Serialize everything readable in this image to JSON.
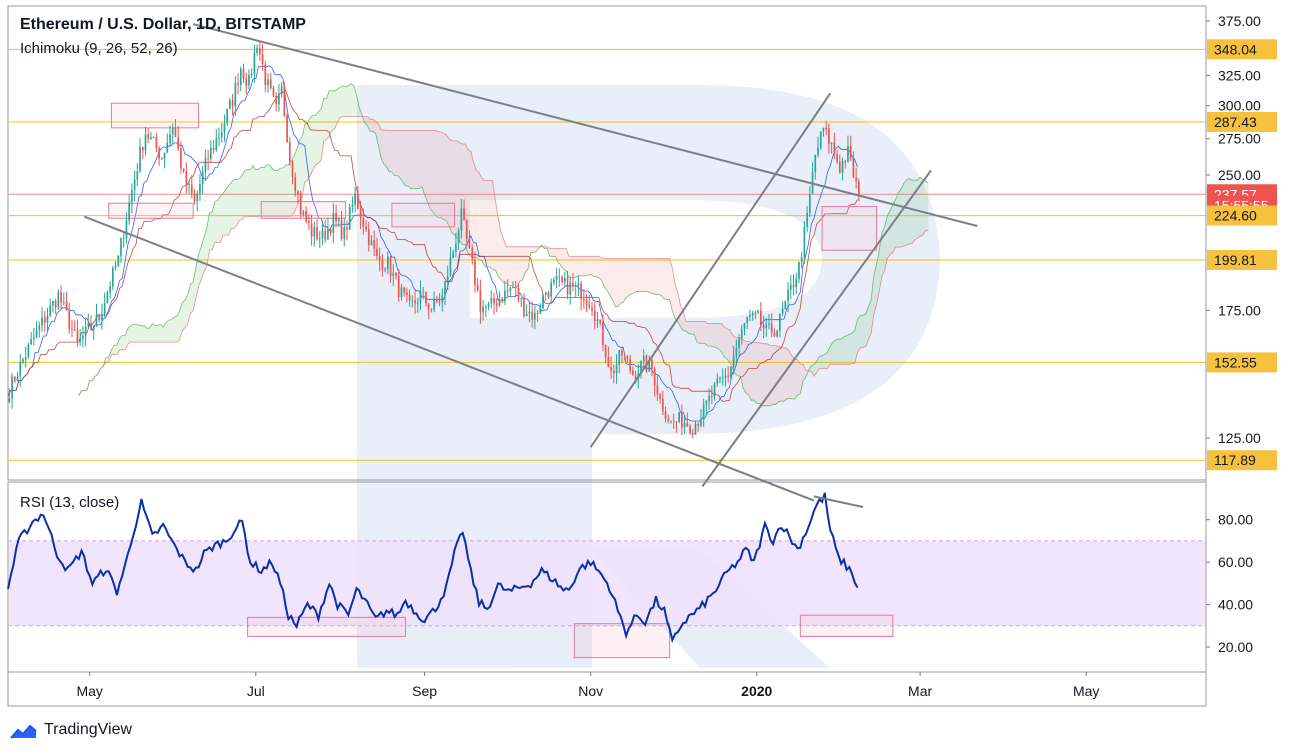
{
  "header": {
    "title": "Ethereum / U.S. Dollar, 1D, BITSTAMP",
    "indicator": "Ichimoku (9, 26, 52, 26)"
  },
  "rsi_panel": {
    "label": "RSI (13, close)"
  },
  "branding": {
    "text": "TradingView"
  },
  "colors": {
    "up": "#26a69a",
    "down": "#ef5350",
    "tenkan": "#2962ff",
    "kijun": "#b71c1c",
    "cloud_up": "#4caf50",
    "cloud_down": "#e57373",
    "rsi": "#0d2ea8",
    "rsi_band": "#ede0fb",
    "level_line": "#f0c419",
    "level_badge": "#f6c23e",
    "price_badge": "#ef5350",
    "trend_line": "#7b7f8a",
    "watermark": "#2a5ab7"
  },
  "chart_data": {
    "type": "candlestick",
    "symbol": "Ethereum / U.S. Dollar",
    "timeframe": "1D",
    "exchange": "BITSTAMP",
    "indicators": [
      "Ichimoku (9, 26, 52, 26)",
      "RSI (13, close)"
    ],
    "x_axis": {
      "labels": [
        "May",
        "Jul",
        "Sep",
        "Nov",
        "2020",
        "Mar",
        "May"
      ],
      "bold_labels": [
        "2020"
      ],
      "label_days": [
        30,
        91,
        153,
        214,
        275,
        335,
        396
      ],
      "start_day": 0,
      "end_day": 440,
      "start_date": "2019-04-01",
      "note": "day index counted from 2019-04-01"
    },
    "price_axis": {
      "ticks": [
        125,
        150,
        175,
        200,
        225,
        250,
        275,
        300,
        325,
        350,
        375
      ],
      "tick_labels": [
        "125.00",
        "",
        "175.00",
        "",
        "",
        "250.00",
        "275.00",
        "300.00",
        "325.00",
        "",
        "375.00"
      ],
      "scale": "log"
    },
    "level_lines": [
      {
        "value": 348.04,
        "label": "348.04",
        "type": "level"
      },
      {
        "value": 287.43,
        "label": "287.43",
        "type": "level"
      },
      {
        "value": 237.57,
        "label": "237.57",
        "type": "last_price"
      },
      {
        "value": 230.5,
        "label": "15:55:55",
        "type": "countdown"
      },
      {
        "value": 224.6,
        "label": "224.60",
        "type": "level"
      },
      {
        "value": 199.81,
        "label": "199.81",
        "type": "level"
      },
      {
        "value": 152.55,
        "label": "152.55",
        "type": "level"
      },
      {
        "value": 117.89,
        "label": "117.89",
        "type": "level"
      }
    ],
    "price_anchors": [
      [
        0,
        142
      ],
      [
        10,
        165
      ],
      [
        18,
        182
      ],
      [
        25,
        160
      ],
      [
        33,
        172
      ],
      [
        40,
        200
      ],
      [
        45,
        240
      ],
      [
        50,
        280
      ],
      [
        56,
        262
      ],
      [
        60,
        285
      ],
      [
        64,
        248
      ],
      [
        68,
        232
      ],
      [
        73,
        262
      ],
      [
        78,
        282
      ],
      [
        82,
        305
      ],
      [
        85,
        332
      ],
      [
        88,
        318
      ],
      [
        91,
        355
      ],
      [
        94,
        322
      ],
      [
        98,
        296
      ],
      [
        100,
        312
      ],
      [
        103,
        262
      ],
      [
        107,
        228
      ],
      [
        111,
        215
      ],
      [
        115,
        212
      ],
      [
        119,
        222
      ],
      [
        123,
        214
      ],
      [
        127,
        236
      ],
      [
        131,
        216
      ],
      [
        135,
        200
      ],
      [
        139,
        198
      ],
      [
        143,
        185
      ],
      [
        147,
        176
      ],
      [
        151,
        182
      ],
      [
        155,
        176
      ],
      [
        159,
        181
      ],
      [
        163,
        205
      ],
      [
        166,
        224
      ],
      [
        170,
        196
      ],
      [
        173,
        177
      ],
      [
        176,
        176
      ],
      [
        181,
        182
      ],
      [
        185,
        186
      ],
      [
        189,
        176
      ],
      [
        193,
        172
      ],
      [
        197,
        184
      ],
      [
        201,
        188
      ],
      [
        206,
        186
      ],
      [
        210,
        184
      ],
      [
        214,
        178
      ],
      [
        218,
        162
      ],
      [
        221,
        148
      ],
      [
        225,
        156
      ],
      [
        229,
        148
      ],
      [
        233,
        152
      ],
      [
        236,
        150
      ],
      [
        239,
        138
      ],
      [
        243,
        130
      ],
      [
        247,
        131
      ],
      [
        251,
        129
      ],
      [
        255,
        134
      ],
      [
        259,
        142
      ],
      [
        264,
        148
      ],
      [
        268,
        162
      ],
      [
        271,
        171
      ],
      [
        275,
        171
      ],
      [
        278,
        165
      ],
      [
        282,
        167
      ],
      [
        286,
        181
      ],
      [
        290,
        196
      ],
      [
        293,
        223
      ],
      [
        296,
        263
      ],
      [
        299,
        282
      ],
      [
        302,
        270
      ],
      [
        305,
        255
      ],
      [
        308,
        265
      ],
      [
        310,
        250
      ],
      [
        312,
        237.57
      ]
    ],
    "rsi_axis": {
      "ticks": [
        20,
        40,
        60,
        80
      ],
      "tick_labels": [
        "20.00",
        "40.00",
        "60.00",
        "80.00"
      ],
      "range": [
        12,
        94
      ],
      "band": [
        30,
        70
      ]
    },
    "rsi_anchors": [
      [
        0,
        48
      ],
      [
        4,
        70
      ],
      [
        9,
        79
      ],
      [
        13,
        83
      ],
      [
        18,
        64
      ],
      [
        22,
        56
      ],
      [
        27,
        65
      ],
      [
        31,
        50
      ],
      [
        36,
        57
      ],
      [
        40,
        46
      ],
      [
        43,
        58
      ],
      [
        46,
        74
      ],
      [
        49,
        88
      ],
      [
        53,
        72
      ],
      [
        57,
        77
      ],
      [
        61,
        68
      ],
      [
        65,
        60
      ],
      [
        69,
        56
      ],
      [
        72,
        64
      ],
      [
        76,
        68
      ],
      [
        80,
        70
      ],
      [
        83,
        75
      ],
      [
        86,
        79
      ],
      [
        89,
        60
      ],
      [
        93,
        56
      ],
      [
        97,
        60
      ],
      [
        100,
        50
      ],
      [
        103,
        35
      ],
      [
        106,
        30
      ],
      [
        110,
        40
      ],
      [
        114,
        35
      ],
      [
        118,
        50
      ],
      [
        121,
        40
      ],
      [
        125,
        35
      ],
      [
        128,
        47
      ],
      [
        131,
        42
      ],
      [
        135,
        33
      ],
      [
        139,
        37
      ],
      [
        143,
        35
      ],
      [
        146,
        42
      ],
      [
        150,
        36
      ],
      [
        153,
        33
      ],
      [
        157,
        38
      ],
      [
        161,
        48
      ],
      [
        164,
        64
      ],
      [
        167,
        75
      ],
      [
        170,
        55
      ],
      [
        173,
        41
      ],
      [
        176,
        38
      ],
      [
        180,
        49
      ],
      [
        184,
        46
      ],
      [
        188,
        48
      ],
      [
        192,
        50
      ],
      [
        196,
        56
      ],
      [
        200,
        52
      ],
      [
        204,
        47
      ],
      [
        206,
        47
      ],
      [
        210,
        57
      ],
      [
        214,
        60
      ],
      [
        218,
        54
      ],
      [
        221,
        48
      ],
      [
        224,
        37
      ],
      [
        227,
        27
      ],
      [
        231,
        35
      ],
      [
        234,
        32
      ],
      [
        238,
        42
      ],
      [
        241,
        37
      ],
      [
        244,
        22
      ],
      [
        247,
        30
      ],
      [
        250,
        34
      ],
      [
        254,
        38
      ],
      [
        259,
        45
      ],
      [
        264,
        55
      ],
      [
        268,
        60
      ],
      [
        271,
        66
      ],
      [
        274,
        60
      ],
      [
        278,
        77
      ],
      [
        281,
        70
      ],
      [
        284,
        78
      ],
      [
        287,
        72
      ],
      [
        290,
        66
      ],
      [
        293,
        74
      ],
      [
        297,
        87
      ],
      [
        300,
        91
      ],
      [
        302,
        75
      ],
      [
        305,
        62
      ],
      [
        308,
        58
      ],
      [
        310,
        55
      ],
      [
        312,
        48
      ]
    ],
    "trend_lines": [
      {
        "name": "channel-upper",
        "points": [
          [
            68,
            372
          ],
          [
            356,
            218.5
          ]
        ]
      },
      {
        "name": "channel-lower",
        "points": [
          [
            28,
            224
          ],
          [
            296,
            106
          ]
        ]
      },
      {
        "name": "ascending-upper",
        "points": [
          [
            214,
            122
          ],
          [
            302,
            310
          ]
        ]
      },
      {
        "name": "ascending-lower",
        "points": [
          [
            255,
            110
          ],
          [
            339,
            253
          ]
        ]
      }
    ],
    "rsi_trend_line": {
      "points": [
        [
          296,
          91
        ],
        [
          314,
          86
        ]
      ]
    },
    "highlight_boxes": {
      "price": [
        {
          "days": [
            38,
            70
          ],
          "prices": [
            283,
            302
          ]
        },
        {
          "days": [
            37,
            68
          ],
          "prices": [
            223,
            232
          ]
        },
        {
          "days": [
            93,
            124
          ],
          "prices": [
            223,
            233
          ]
        },
        {
          "days": [
            141,
            164
          ],
          "prices": [
            218,
            232
          ]
        },
        {
          "days": [
            299,
            319
          ],
          "prices": [
            205,
            230
          ]
        }
      ],
      "rsi": [
        {
          "days": [
            88,
            146
          ],
          "values": [
            25,
            34
          ]
        },
        {
          "days": [
            208,
            243
          ],
          "values": [
            15,
            31
          ]
        },
        {
          "days": [
            291,
            325
          ],
          "values": [
            25,
            35
          ]
        }
      ]
    }
  }
}
